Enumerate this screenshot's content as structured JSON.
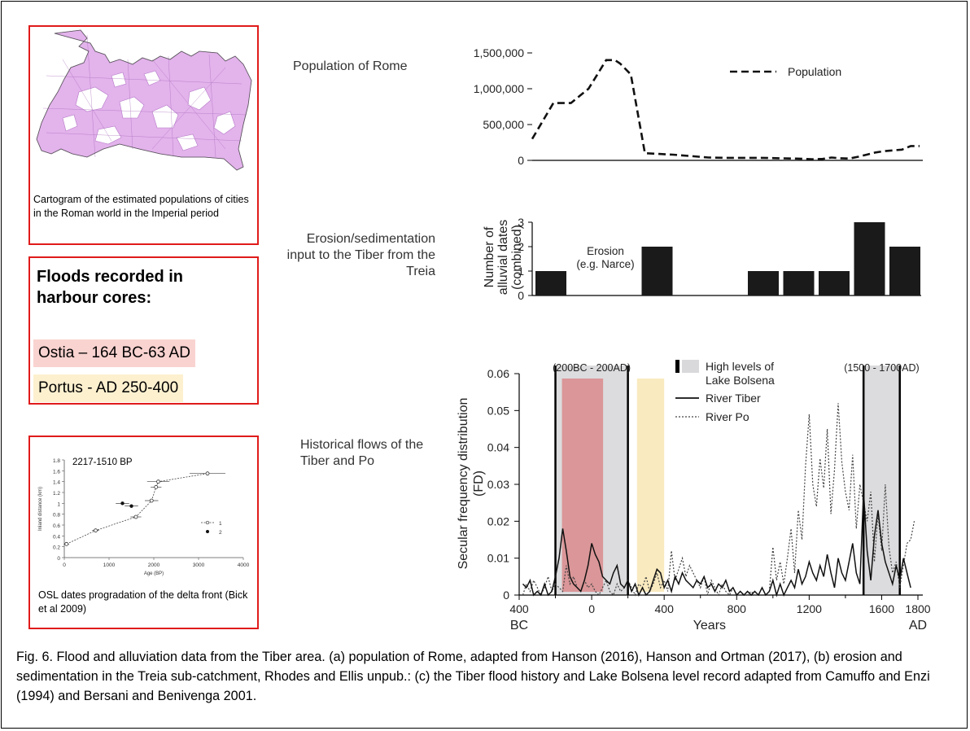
{
  "left_panels": {
    "cartogram_caption": "Cartogram of the estimated populations of cities in the Roman world in the Imperial period",
    "floods": {
      "title": "Floods recorded in harbour cores:",
      "ostia": "Ostia – 164 BC-63 AD",
      "portus": "Portus - AD 250-400",
      "ostia_color": "#f9d3d0",
      "portus_color": "#fdf0cf"
    },
    "osl": {
      "caption": "OSL dates progradation of the delta front (Bick et al 2009)"
    }
  },
  "panel_labels": {
    "a": "Population of Rome",
    "b": "Erosion/sedimentation input to the Tiber from the Treia",
    "c": "Historical flows of the Tiber and Po"
  },
  "caption": "Fig. 6. Flood and alluviation data from the Tiber area. (a) population of Rome, adapted from Hanson (2016), Hanson and Ortman (2017), (b) erosion and sedimentation in the Treia sub-catchment, Rhodes and Ellis unpub.: (c) the Tiber flood history and Lake Bolsena level record adapted from Camuffo and Enzi (1994) and Bersani and Benivenga 2001.",
  "chart_data": [
    {
      "id": "population",
      "type": "line",
      "xlim": [
        -400,
        1800
      ],
      "ylim": [
        0,
        1500000
      ],
      "yticks": [
        "0",
        "500,000",
        "1,000,000",
        "1,500,000"
      ],
      "ytick_values": [
        0,
        500000,
        1000000,
        1500000
      ],
      "series": [
        {
          "name": "Population",
          "x": [
            -400,
            -340,
            -280,
            -230,
            -180,
            -130,
            -80,
            -30,
            20,
            70,
            100,
            160,
            240,
            320,
            400,
            500,
            600,
            700,
            800,
            900,
            1000,
            1100,
            1150,
            1200,
            1250,
            1300,
            1350,
            1400,
            1450,
            1500,
            1550,
            1600,
            1650,
            1700,
            1750,
            1800
          ],
          "y": [
            300000,
            550000,
            800000,
            800000,
            800000,
            900000,
            1000000,
            1200000,
            1400000,
            1400000,
            1350000,
            1200000,
            100000,
            90000,
            80000,
            60000,
            40000,
            35000,
            35000,
            35000,
            30000,
            25000,
            20000,
            15000,
            20000,
            40000,
            30000,
            25000,
            50000,
            80000,
            110000,
            130000,
            140000,
            150000,
            200000,
            200000
          ]
        }
      ]
    },
    {
      "id": "erosion",
      "type": "bar",
      "ylabel": "Number of alluvial dates (combined)",
      "ylim": [
        0,
        3
      ],
      "yticks": [
        "0",
        "1",
        "2",
        "3"
      ],
      "ytick_values": [
        0,
        1,
        2,
        3
      ],
      "annotation": "Erosion (e.g. Narce)",
      "annotation_lines": [
        "Erosion",
        "(e.g. Narce)"
      ],
      "bar_width": 160,
      "bars": [
        {
          "x": -300,
          "value": 1
        },
        {
          "x": 300,
          "value": 2
        },
        {
          "x": 1050,
          "value": 1
        },
        {
          "x": 1250,
          "value": 1
        },
        {
          "x": 1450,
          "value": 1
        },
        {
          "x": 1650,
          "value": 3
        },
        {
          "x": 1850,
          "value": 2
        }
      ]
    },
    {
      "id": "floods",
      "type": "line",
      "ylabel": "Secular frequency distribution (FD)",
      "xlabel": "Years",
      "xlim": [
        -400,
        1800
      ],
      "ylim": [
        0,
        0.06
      ],
      "xticks": [
        "400",
        "0",
        "400",
        "800",
        "1200",
        "1600",
        "1800"
      ],
      "xtick_values": [
        -400,
        0,
        400,
        800,
        1200,
        1600,
        1800
      ],
      "x_end_labels": [
        "BC",
        "AD"
      ],
      "yticks": [
        "0",
        "0.01",
        "0.02",
        "0.03",
        "0.04",
        "0.05",
        "0.06"
      ],
      "ytick_values": [
        0,
        0.01,
        0.02,
        0.03,
        0.04,
        0.05,
        0.06
      ],
      "period_labels": [
        "(200BC - 200AD)",
        "(1500 - 1700AD)"
      ],
      "high_lake_periods": [
        [
          -200,
          200
        ],
        [
          1500,
          1700
        ]
      ],
      "harbour_spans": [
        {
          "name": "Ostia",
          "range": [
            -164,
            63
          ],
          "color": "#d98a8c"
        },
        {
          "name": "Portus",
          "range": [
            250,
            400
          ],
          "color": "#f8e6b4"
        }
      ],
      "legend": [
        "High levels of",
        "Lake Bolsena",
        "River Tiber",
        "River Po"
      ],
      "series": [
        {
          "name": "River Tiber",
          "x": [
            -380,
            -360,
            -340,
            -320,
            -300,
            -280,
            -260,
            -240,
            -220,
            -200,
            -180,
            -160,
            -140,
            -120,
            -100,
            -80,
            -60,
            -40,
            -20,
            0,
            20,
            40,
            60,
            80,
            100,
            120,
            140,
            160,
            180,
            200,
            220,
            240,
            260,
            280,
            300,
            320,
            340,
            360,
            380,
            400,
            420,
            440,
            460,
            480,
            500,
            520,
            540,
            560,
            580,
            600,
            620,
            640,
            660,
            680,
            700,
            720,
            740,
            760,
            780,
            800,
            820,
            840,
            860,
            880,
            900,
            920,
            940,
            960,
            980,
            1000,
            1020,
            1040,
            1060,
            1080,
            1100,
            1120,
            1140,
            1160,
            1180,
            1200,
            1220,
            1240,
            1260,
            1280,
            1300,
            1320,
            1340,
            1360,
            1380,
            1400,
            1420,
            1440,
            1460,
            1480,
            1500,
            1520,
            1540,
            1560,
            1580,
            1600,
            1620,
            1640,
            1660,
            1680,
            1700,
            1720,
            1740,
            1760
          ],
          "y": [
            0.003,
            0.002,
            0.004,
            0.0,
            0.001,
            0.0,
            0.003,
            0.0,
            0.001,
            0.005,
            0.01,
            0.018,
            0.012,
            0.005,
            0.003,
            0.002,
            0.001,
            0.004,
            0.008,
            0.014,
            0.011,
            0.009,
            0.005,
            0.004,
            0.003,
            0.006,
            0.008,
            0.003,
            0.002,
            0.004,
            0.001,
            0.003,
            0.0,
            0.002,
            0.0,
            0.001,
            0.004,
            0.007,
            0.006,
            0.002,
            0.004,
            0.001,
            0.005,
            0.003,
            0.006,
            0.004,
            0.003,
            0.002,
            0.004,
            0.003,
            0.005,
            0.002,
            0.003,
            0.001,
            0.003,
            0.002,
            0.004,
            0.001,
            0.002,
            0.0,
            0.001,
            0.0,
            0.001,
            0.0,
            0.001,
            0.0,
            0.002,
            0.0,
            0.001,
            0.004,
            0.0,
            0.003,
            0.0,
            0.002,
            0.004,
            0.002,
            0.007,
            0.003,
            0.005,
            0.009,
            0.006,
            0.004,
            0.008,
            0.005,
            0.011,
            0.006,
            0.002,
            0.01,
            0.006,
            0.004,
            0.009,
            0.014,
            0.006,
            0.003,
            0.028,
            0.012,
            0.004,
            0.016,
            0.023,
            0.014,
            0.009,
            0.006,
            0.003,
            0.008,
            0.004,
            0.01,
            0.006,
            0.002
          ]
        },
        {
          "name": "River Po",
          "x": [
            -380,
            -360,
            -340,
            -320,
            -300,
            -280,
            -260,
            -240,
            -220,
            -200,
            -180,
            -160,
            -140,
            -120,
            -100,
            -80,
            -60,
            -40,
            -20,
            0,
            20,
            40,
            60,
            80,
            100,
            120,
            140,
            160,
            180,
            200,
            220,
            240,
            260,
            280,
            300,
            320,
            340,
            360,
            380,
            400,
            420,
            440,
            460,
            480,
            500,
            520,
            540,
            560,
            580,
            600,
            620,
            640,
            660,
            680,
            700,
            720,
            740,
            760,
            780,
            800,
            820,
            840,
            860,
            880,
            900,
            920,
            940,
            960,
            980,
            1000,
            1020,
            1040,
            1060,
            1080,
            1100,
            1120,
            1140,
            1160,
            1180,
            1200,
            1220,
            1240,
            1260,
            1280,
            1300,
            1320,
            1340,
            1360,
            1380,
            1400,
            1420,
            1440,
            1460,
            1480,
            1500,
            1520,
            1540,
            1560,
            1580,
            1600,
            1620,
            1640,
            1660,
            1680,
            1700,
            1720,
            1740,
            1760,
            1780
          ],
          "y": [
            0.0,
            0.003,
            0.001,
            0.004,
            0.002,
            0.0,
            0.002,
            0.005,
            0.001,
            0.003,
            0.002,
            0.001,
            0.008,
            0.003,
            0.005,
            0.002,
            0.001,
            0.004,
            0.002,
            0.003,
            0.001,
            0.0,
            0.002,
            0.004,
            0.001,
            0.0,
            0.003,
            0.001,
            0.002,
            0.004,
            0.002,
            0.0,
            0.003,
            0.002,
            0.005,
            0.001,
            0.003,
            0.006,
            0.002,
            0.004,
            0.001,
            0.012,
            0.004,
            0.007,
            0.01,
            0.005,
            0.008,
            0.006,
            0.004,
            0.002,
            0.005,
            0.0,
            0.004,
            0.002,
            0.0,
            0.003,
            0.001,
            0.0,
            0.002,
            0.0,
            0.001,
            0.0,
            0.0,
            0.001,
            0.0,
            0.0,
            0.002,
            0.0,
            0.001,
            0.013,
            0.004,
            0.009,
            0.003,
            0.01,
            0.018,
            0.006,
            0.023,
            0.015,
            0.035,
            0.049,
            0.03,
            0.024,
            0.037,
            0.029,
            0.045,
            0.022,
            0.034,
            0.052,
            0.036,
            0.028,
            0.023,
            0.038,
            0.018,
            0.03,
            0.025,
            0.02,
            0.028,
            0.009,
            0.022,
            0.012,
            0.03,
            0.013,
            0.006,
            0.009,
            0.002,
            0.008,
            0.014,
            0.015,
            0.02
          ]
        }
      ]
    }
  ],
  "osl_chart": {
    "title": "2217-1510 BP",
    "xlabel": "Age (BP)",
    "ylabel": "Inland distance (km)",
    "xlim": [
      0,
      4000
    ],
    "ylim": [
      0,
      1.8
    ],
    "xticks": [
      "0",
      "1000",
      "2000",
      "3000",
      "4000"
    ],
    "xtick_values": [
      0,
      1000,
      2000,
      3000,
      4000
    ],
    "yticks": [
      "0",
      "0.2",
      "0.4",
      "0.6",
      "0.8",
      "1",
      "1.2",
      "1.4",
      "1.6",
      "1.8"
    ],
    "ytick_values": [
      0,
      0.2,
      0.4,
      0.6,
      0.8,
      1.0,
      1.2,
      1.4,
      1.6,
      1.8
    ],
    "legend": [
      "1",
      "2"
    ],
    "series1": [
      [
        50,
        0.25
      ],
      [
        700,
        0.5
      ],
      [
        1600,
        0.75
      ],
      [
        1950,
        1.05
      ],
      [
        2050,
        1.3
      ],
      [
        2100,
        1.4
      ],
      [
        3200,
        1.55
      ]
    ],
    "series1_err": [
      60,
      80,
      120,
      150,
      120,
      250,
      400
    ],
    "series2": [
      [
        1300,
        1.0
      ],
      [
        1500,
        0.95
      ]
    ],
    "series2_err": [
      150,
      150
    ]
  }
}
